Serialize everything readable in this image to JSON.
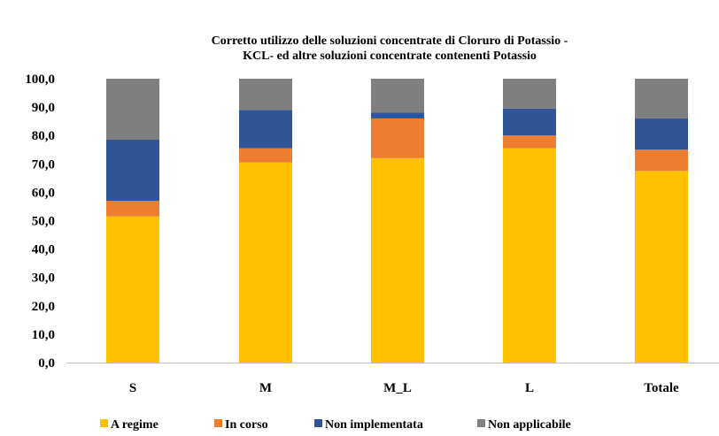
{
  "chart_data": {
    "type": "bar",
    "stacked": true,
    "title": "Corretto utilizzo delle soluzioni concentrate di Cloruro di Potassio - KCL- ed altre soluzioni concentrate contenenti Potassio",
    "title_lines": [
      "Corretto utilizzo delle soluzioni concentrate di Cloruro di Potassio -",
      "KCL- ed altre soluzioni concentrate contenenti Potassio"
    ],
    "categories": [
      "S",
      "M",
      "M_L",
      "L",
      "Totale"
    ],
    "ylim": [
      0,
      100
    ],
    "yticks": [
      "0,0",
      "10,0",
      "20,0",
      "30,0",
      "40,0",
      "50,0",
      "60,0",
      "70,0",
      "80,0",
      "90,0",
      "100,0"
    ],
    "series": [
      {
        "name": "A regime",
        "color": "#FFC000",
        "values": [
          51.5,
          70.5,
          72.0,
          75.5,
          67.5
        ]
      },
      {
        "name": "In corso",
        "color": "#ED7D31",
        "values": [
          5.5,
          5.0,
          14.0,
          4.5,
          7.5
        ]
      },
      {
        "name": "Non implementata",
        "color": "#2F5597",
        "values": [
          21.5,
          13.5,
          2.0,
          9.5,
          11.0
        ]
      },
      {
        "name": "Non applicabile",
        "color": "#7F7F7F",
        "values": [
          21.5,
          11.0,
          12.0,
          10.5,
          14.0
        ]
      }
    ],
    "legend_position": "bottom",
    "grid": false
  }
}
